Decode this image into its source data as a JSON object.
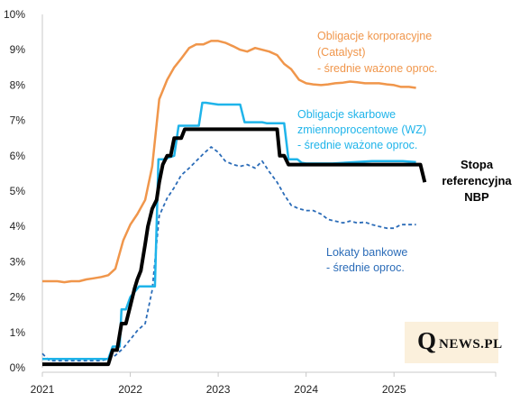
{
  "chart_data": {
    "type": "line",
    "title": "",
    "xlabel": "",
    "ylabel": "",
    "ylim": [
      0,
      10
    ],
    "xlim": [
      2021,
      2025.9
    ],
    "y_ticks": [
      "0%",
      "1%",
      "2%",
      "3%",
      "4%",
      "5%",
      "6%",
      "7%",
      "8%",
      "9%",
      "10%"
    ],
    "x_ticks": [
      {
        "value": 2021,
        "label": "2021"
      },
      {
        "value": 2022,
        "label": "2022"
      },
      {
        "value": 2023,
        "label": "2023"
      },
      {
        "value": 2024,
        "label": "2024"
      },
      {
        "value": 2025,
        "label": "2025"
      }
    ],
    "grid": false,
    "series": [
      {
        "key": "corporate",
        "color": "#f0964b",
        "style": "solid",
        "width": 2.5,
        "labels": [
          "Obligacje korporacyjne",
          "(Catalyst)",
          "- średnie ważone oproc."
        ],
        "x": [
          2021.0,
          2021.17,
          2021.25,
          2021.33,
          2021.42,
          2021.5,
          2021.58,
          2021.67,
          2021.75,
          2021.83,
          2021.92,
          2022.0,
          2022.08,
          2022.17,
          2022.25,
          2022.33,
          2022.42,
          2022.5,
          2022.58,
          2022.67,
          2022.75,
          2022.83,
          2022.92,
          2023.0,
          2023.08,
          2023.17,
          2023.25,
          2023.33,
          2023.42,
          2023.5,
          2023.58,
          2023.67,
          2023.75,
          2023.83,
          2023.92,
          2024.0,
          2024.08,
          2024.17,
          2024.25,
          2024.33,
          2024.42,
          2024.5,
          2024.58,
          2024.67,
          2024.75,
          2024.83,
          2024.92,
          2025.0,
          2025.08,
          2025.17,
          2025.25
        ],
        "y": [
          2.45,
          2.45,
          2.42,
          2.45,
          2.45,
          2.5,
          2.53,
          2.57,
          2.62,
          2.8,
          3.6,
          4.05,
          4.35,
          4.75,
          5.7,
          7.6,
          8.15,
          8.5,
          8.75,
          9.05,
          9.15,
          9.15,
          9.25,
          9.25,
          9.2,
          9.1,
          9.0,
          8.95,
          9.05,
          9.0,
          8.95,
          8.85,
          8.6,
          8.45,
          8.15,
          8.05,
          8.02,
          8.0,
          8.02,
          8.05,
          8.07,
          8.1,
          8.08,
          8.05,
          8.05,
          8.05,
          8.02,
          8.0,
          7.95,
          7.95,
          7.92
        ]
      },
      {
        "key": "treasury",
        "color": "#1fb4ea",
        "style": "solid",
        "width": 2.5,
        "labels": [
          "Obligacje skarbowe",
          "zmiennoprocentowe (WZ)",
          "- średnie ważone oproc."
        ],
        "x": [
          2021.0,
          2021.75,
          2021.8,
          2021.88,
          2021.9,
          2021.95,
          2022.0,
          2022.1,
          2022.2,
          2022.25,
          2022.28,
          2022.32,
          2022.38,
          2022.5,
          2022.55,
          2022.6,
          2022.67,
          2022.72,
          2022.75,
          2022.78,
          2022.82,
          2022.86,
          2023.0,
          2023.1,
          2023.15,
          2023.25,
          2023.3,
          2023.35,
          2023.5,
          2023.55,
          2023.6,
          2023.75,
          2023.8,
          2023.9,
          2023.95,
          2024.0,
          2024.25,
          2024.3,
          2024.75,
          2024.8,
          2025.0,
          2025.1,
          2025.25
        ],
        "y": [
          0.25,
          0.25,
          0.6,
          0.6,
          1.65,
          1.65,
          2.0,
          2.3,
          2.3,
          2.3,
          2.3,
          5.9,
          5.9,
          6.0,
          6.85,
          6.85,
          6.85,
          6.85,
          6.85,
          6.85,
          7.5,
          7.5,
          7.45,
          7.45,
          7.45,
          7.45,
          6.95,
          6.95,
          6.95,
          6.92,
          6.92,
          6.92,
          5.9,
          5.9,
          5.8,
          5.78,
          5.78,
          5.78,
          5.85,
          5.85,
          5.85,
          5.85,
          5.82
        ]
      },
      {
        "key": "nbp",
        "color": "#000000",
        "style": "solid",
        "width": 4,
        "labels": [
          "Stopa",
          "referencyjna",
          "NBP"
        ],
        "x": [
          2021.0,
          2021.75,
          2021.8,
          2021.85,
          2021.9,
          2021.95,
          2022.0,
          2022.05,
          2022.08,
          2022.12,
          2022.17,
          2022.2,
          2022.25,
          2022.3,
          2022.33,
          2022.37,
          2022.42,
          2022.46,
          2022.5,
          2022.54,
          2022.58,
          2022.62,
          2022.67,
          2022.7,
          2022.75,
          2023.0,
          2023.5,
          2023.6,
          2023.67,
          2023.7,
          2023.75,
          2023.8,
          2024.0,
          2024.5,
          2025.0,
          2025.3,
          2025.35
        ],
        "y": [
          0.1,
          0.1,
          0.5,
          0.5,
          1.25,
          1.25,
          1.75,
          2.25,
          2.5,
          2.75,
          3.5,
          4.0,
          4.5,
          4.75,
          5.25,
          5.75,
          6.0,
          6.0,
          6.5,
          6.5,
          6.5,
          6.75,
          6.75,
          6.75,
          6.75,
          6.75,
          6.75,
          6.75,
          6.75,
          6.0,
          6.0,
          5.75,
          5.75,
          5.75,
          5.75,
          5.75,
          5.25
        ]
      },
      {
        "key": "deposits",
        "color": "#2b6cb8",
        "style": "dashed",
        "width": 1.8,
        "labels": [
          "Lokaty bankowe",
          "- średnie oproc."
        ],
        "x": [
          2021.0,
          2021.08,
          2021.17,
          2021.25,
          2021.33,
          2021.42,
          2021.5,
          2021.58,
          2021.67,
          2021.75,
          2021.83,
          2021.92,
          2022.0,
          2022.08,
          2022.17,
          2022.25,
          2022.33,
          2022.42,
          2022.5,
          2022.58,
          2022.67,
          2022.75,
          2022.83,
          2022.92,
          2023.0,
          2023.08,
          2023.17,
          2023.25,
          2023.33,
          2023.42,
          2023.5,
          2023.58,
          2023.67,
          2023.75,
          2023.83,
          2023.92,
          2024.0,
          2024.08,
          2024.17,
          2024.25,
          2024.33,
          2024.42,
          2024.5,
          2024.58,
          2024.67,
          2024.75,
          2024.83,
          2024.92,
          2025.0,
          2025.08,
          2025.17,
          2025.25
        ],
        "y": [
          0.4,
          0.2,
          0.2,
          0.2,
          0.2,
          0.2,
          0.2,
          0.2,
          0.2,
          0.25,
          0.35,
          0.55,
          0.8,
          1.05,
          1.25,
          2.2,
          4.3,
          4.8,
          5.1,
          5.45,
          5.65,
          5.85,
          6.05,
          6.25,
          6.1,
          5.85,
          5.75,
          5.7,
          5.75,
          5.65,
          5.85,
          5.55,
          5.25,
          4.9,
          4.6,
          4.5,
          4.45,
          4.45,
          4.35,
          4.2,
          4.15,
          4.1,
          4.15,
          4.1,
          4.12,
          4.05,
          4.0,
          3.95,
          3.95,
          4.05,
          4.05,
          4.05
        ]
      }
    ]
  },
  "logo": {
    "q": "Q",
    "rest": "NEWS.PL"
  }
}
